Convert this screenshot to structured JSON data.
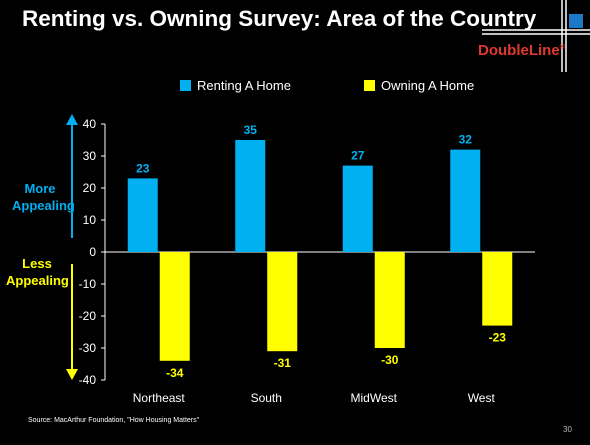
{
  "slide": {
    "title": "Renting vs. Owning Survey: Area of the Country",
    "brand": "DoubleLine",
    "brand_mark": "®",
    "source": "Source: MacArthur Foundation, \"How Housing Matters\"",
    "page_number": "30",
    "more_label_line1": "More",
    "more_label_line2": "Appealing",
    "less_label_line1": "Less",
    "less_label_line2": "Appealing"
  },
  "colors": {
    "background": "#000000",
    "renting": "#00b0f0",
    "owning": "#ffff00",
    "brand": "#e03a2f",
    "logo_square": "#1e78c8"
  },
  "chart_data": {
    "type": "bar",
    "categories": [
      "Northeast",
      "South",
      "MidWest",
      "West"
    ],
    "series": [
      {
        "name": "Renting A Home",
        "values": [
          23,
          35,
          27,
          32
        ],
        "color": "#00b0f0"
      },
      {
        "name": "Owning A Home",
        "values": [
          -34,
          -31,
          -30,
          -23
        ],
        "color": "#ffff00"
      }
    ],
    "data_labels": [
      [
        "23",
        "35",
        "27",
        "32"
      ],
      [
        "-34",
        "-31",
        "-30",
        "-23"
      ]
    ],
    "yticks": [
      "40",
      "30",
      "20",
      "10",
      "0",
      "-10",
      "-20",
      "-30",
      "-40"
    ],
    "ylim": [
      -40,
      40
    ],
    "legend_position": "top",
    "grid": false
  }
}
